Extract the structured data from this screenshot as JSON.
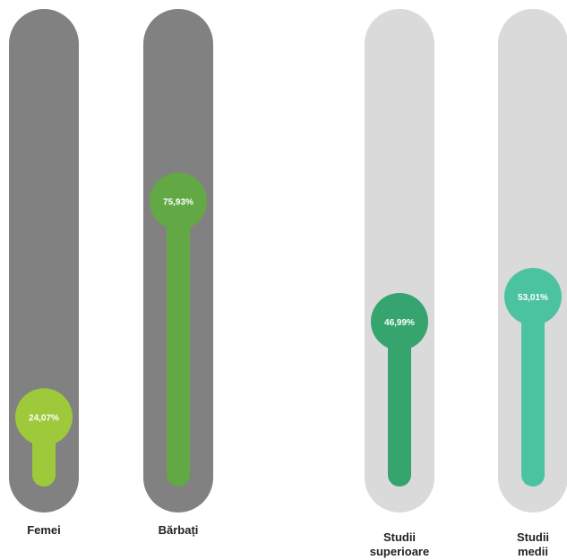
{
  "chart_data": {
    "type": "bar",
    "categories": [
      "Femei",
      "Bărbați",
      "Studii superioare",
      "Studii medii"
    ],
    "values": [
      24.07,
      75.93,
      46.99,
      53.01
    ],
    "value_labels": [
      "24,07%",
      "75,93%",
      "46,99%",
      "53,01%"
    ],
    "unit": "%",
    "ylim": [
      0,
      100
    ],
    "groups": [
      {
        "categories": [
          "Femei",
          "Bărbați"
        ],
        "track_color": "#818181"
      },
      {
        "categories": [
          "Studii superioare",
          "Studii medii"
        ],
        "track_color": "#dadada"
      }
    ],
    "colors": [
      "#9ec93b",
      "#62a844",
      "#35a46e",
      "#4bc3a1"
    ],
    "title": "",
    "xlabel": "",
    "ylabel": "",
    "grid": false,
    "legend": false
  },
  "labels": {
    "femei": "Femei",
    "barbati": "Bărbați",
    "studii_superioare_1": "Studii",
    "studii_superioare_2": "superioare",
    "studii_medii_1": "Studii",
    "studii_medii_2": "medii"
  }
}
